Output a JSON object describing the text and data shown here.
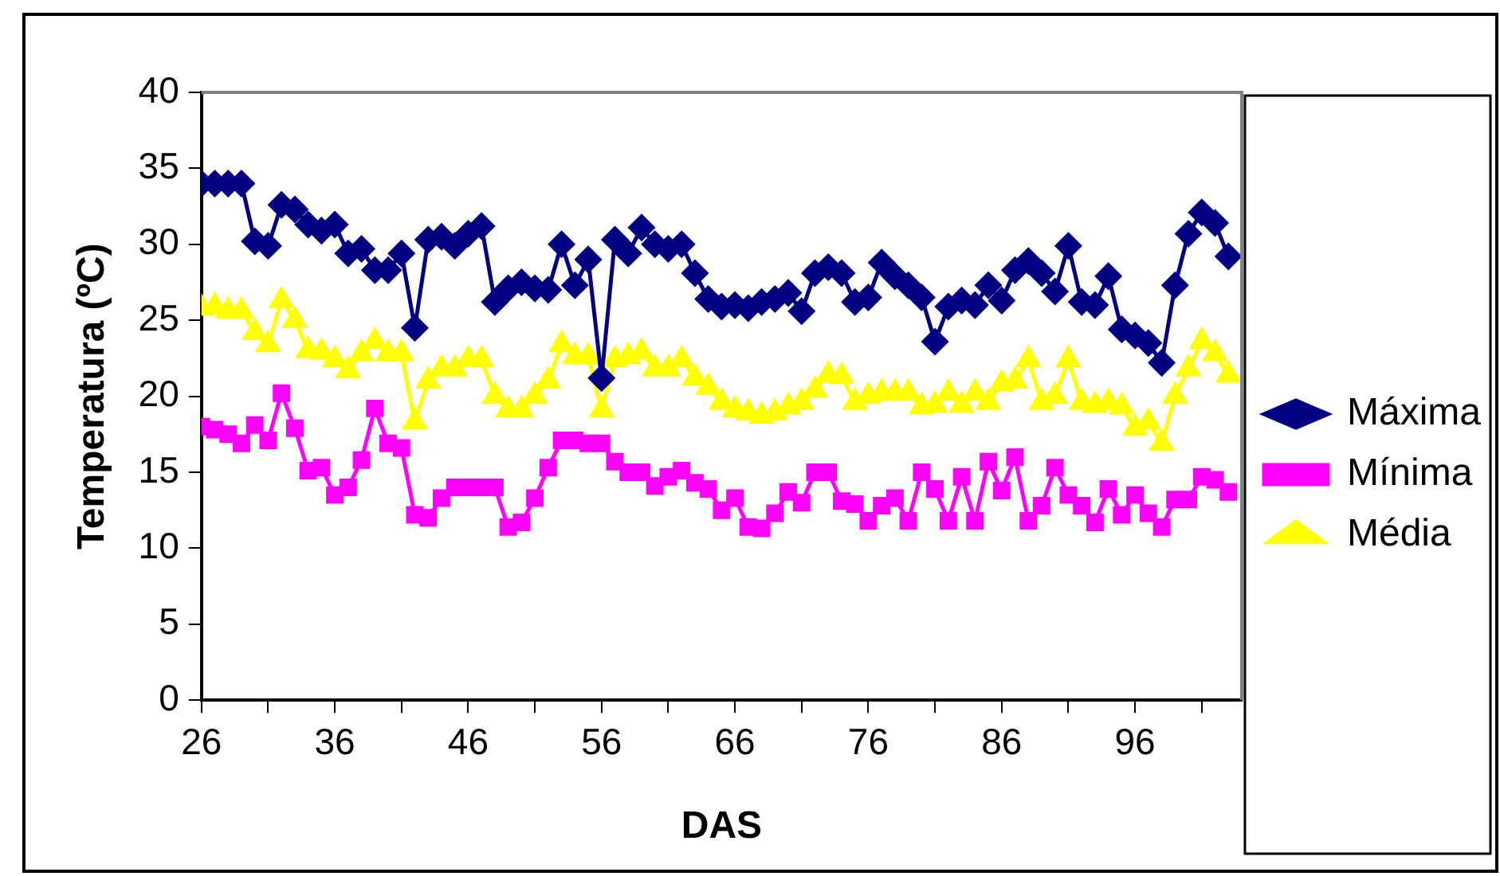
{
  "chart_data": {
    "type": "line",
    "xlabel": "DAS",
    "ylabel": "Temperatura (ºC)",
    "x": [
      26,
      27,
      28,
      29,
      30,
      31,
      32,
      33,
      34,
      35,
      36,
      37,
      38,
      39,
      40,
      41,
      42,
      43,
      44,
      45,
      46,
      47,
      48,
      49,
      50,
      51,
      52,
      53,
      54,
      55,
      56,
      57,
      58,
      59,
      60,
      61,
      62,
      63,
      64,
      65,
      66,
      67,
      68,
      69,
      70,
      71,
      72,
      73,
      74,
      75,
      76,
      77,
      78,
      79,
      80,
      81,
      82,
      83,
      84,
      85,
      86,
      87,
      88,
      89,
      90,
      91,
      92,
      93,
      94,
      95,
      96,
      97,
      98,
      99,
      100,
      101,
      102,
      103
    ],
    "xlim": [
      26,
      104
    ],
    "xticks": [
      26,
      {
        "value": 31,
        "label": null
      },
      36,
      {
        "value": 41,
        "label": null
      },
      46,
      {
        "value": 51,
        "label": null
      },
      56,
      {
        "value": 61,
        "label": null
      },
      66,
      {
        "value": 71,
        "label": null
      },
      76,
      {
        "value": 81,
        "label": null
      },
      86,
      {
        "value": 91,
        "label": null
      },
      96,
      {
        "value": 101,
        "label": null
      }
    ],
    "ylim": [
      0,
      40
    ],
    "yticks": [
      0,
      5,
      10,
      15,
      20,
      25,
      30,
      35,
      40
    ],
    "grid": false,
    "legend": "right",
    "line_style": "solid",
    "series": [
      {
        "name": "Máxima",
        "color": "#000080",
        "marker": "diamond",
        "values": [
          34,
          34,
          34,
          34,
          30.2,
          29.9,
          32.6,
          32.3,
          31.3,
          30.9,
          31.3,
          29.4,
          29.7,
          28.3,
          28.3,
          29.4,
          24.5,
          30.3,
          30.5,
          29.9,
          30.7,
          31.2,
          26.2,
          27.1,
          27.5,
          27.1,
          27,
          30,
          27.3,
          29,
          21.2,
          30.3,
          29.4,
          31.1,
          30,
          29.7,
          30,
          28.1,
          26.4,
          25.9,
          26,
          25.8,
          26.2,
          26.4,
          26.8,
          25.6,
          28.1,
          28.5,
          28.1,
          26.2,
          26.5,
          28.8,
          27.9,
          27.3,
          26.5,
          23.6,
          25.9,
          26.3,
          26,
          27.3,
          26.3,
          28.3,
          28.9,
          28.1,
          26.9,
          29.9,
          26.2,
          26,
          27.9,
          24.4,
          24,
          23.5,
          22.2,
          27.3,
          30.7,
          32.1,
          31.4,
          29.2
        ]
      },
      {
        "name": "Mínima",
        "color": "#ff00ff",
        "marker": "square",
        "values": [
          18,
          17.8,
          17.5,
          16.9,
          18.1,
          17.1,
          20.2,
          17.9,
          15.1,
          15.3,
          13.5,
          14,
          15.8,
          19.2,
          16.9,
          16.6,
          12.2,
          12,
          13.3,
          14,
          14,
          14,
          14,
          11.4,
          11.7,
          13.3,
          15.3,
          17.1,
          17.1,
          16.9,
          16.9,
          15.7,
          15,
          15,
          14.1,
          14.7,
          15.1,
          14.3,
          13.9,
          12.5,
          13.3,
          11.4,
          11.3,
          12.3,
          13.7,
          13,
          15,
          15,
          13.1,
          12.9,
          11.8,
          12.8,
          13.3,
          11.8,
          15,
          13.9,
          11.8,
          14.7,
          11.8,
          15.7,
          13.8,
          16,
          11.8,
          12.8,
          15.3,
          13.5,
          12.8,
          11.7,
          13.9,
          12.2,
          13.5,
          12.3,
          11.4,
          13.2,
          13.2,
          14.7,
          14.5,
          13.7
        ]
      },
      {
        "name": "Média",
        "color": "#ffff00",
        "marker": "triangle",
        "values": [
          25.8,
          25.9,
          25.6,
          25.6,
          24.2,
          23.4,
          26.3,
          25,
          23,
          22.9,
          22.4,
          21.7,
          22.8,
          23.6,
          22.8,
          22.8,
          18.3,
          21,
          21.8,
          21.8,
          22.4,
          22.4,
          20,
          19.1,
          19.1,
          20,
          21,
          23.4,
          22.6,
          22.6,
          19.1,
          22.4,
          22.6,
          22.9,
          21.8,
          21.8,
          22.4,
          21.2,
          20.6,
          19.6,
          19.1,
          18.9,
          18.7,
          18.9,
          19.3,
          19.6,
          20.4,
          21.4,
          21.3,
          19.6,
          20,
          20.2,
          20.2,
          20.2,
          19.3,
          19.4,
          20.2,
          19.4,
          20.2,
          19.6,
          20.8,
          21,
          22.4,
          19.6,
          20,
          22.4,
          19.6,
          19.4,
          19.6,
          19.3,
          17.9,
          18.3,
          16.9,
          20,
          21.8,
          23.6,
          22.8,
          21.4
        ]
      }
    ]
  }
}
